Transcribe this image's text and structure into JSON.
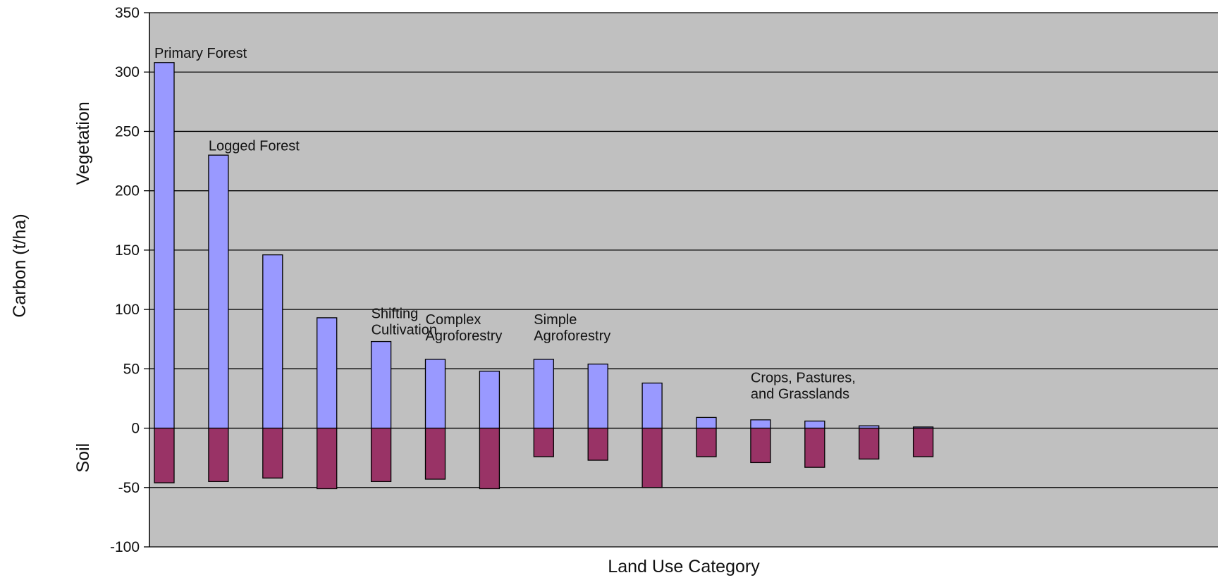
{
  "chart_data": {
    "type": "bar",
    "xlabel": "Land Use Category",
    "ylabel": "Carbon (t/ha)",
    "ylabel_upper": "Vegetation",
    "ylabel_lower": "Soil",
    "ylim": [
      -100,
      350
    ],
    "yticks": [
      "350",
      "300",
      "250",
      "200",
      "150",
      "100",
      "50",
      "0",
      "-50",
      "-100"
    ],
    "grid": true,
    "legend": "none",
    "colors": {
      "plot_background": "#c0c0c0",
      "vegetation": "#9999ff",
      "soil": "#993366",
      "grid": "#000000"
    },
    "series": [
      {
        "key": "vegetation",
        "values": [
          308,
          230,
          146,
          93,
          73,
          58,
          48,
          58,
          54,
          38,
          9,
          7,
          6,
          2,
          1
        ]
      },
      {
        "key": "soil",
        "values": [
          -46,
          -45,
          -42,
          -51,
          -45,
          -43,
          -51,
          -24,
          -27,
          -50,
          -24,
          -29,
          -33,
          -26,
          -24
        ]
      }
    ],
    "annotations": [
      {
        "lines": [
          "Primary Forest"
        ],
        "bar": 0,
        "y": 312
      },
      {
        "lines": [
          "Logged Forest"
        ],
        "bar": 1,
        "y": 234
      },
      {
        "lines": [
          "Shifting",
          "Cultivation"
        ],
        "bar": 4,
        "y": 79
      },
      {
        "lines": [
          "Complex",
          "Agroforestry"
        ],
        "bar": 5,
        "y": 74
      },
      {
        "lines": [
          "Simple",
          "Agroforestry"
        ],
        "bar": 7,
        "y": 74
      },
      {
        "lines": [
          "Crops, Pastures,",
          "and Grasslands"
        ],
        "bar": 11,
        "y": 25
      }
    ]
  }
}
